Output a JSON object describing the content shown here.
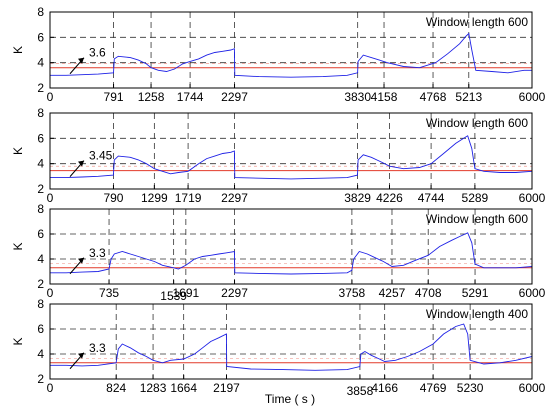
{
  "colors": {
    "signal": "#1f22e6",
    "threshold": "#e23a2a",
    "grid": "#333333"
  },
  "chart_data": [
    {
      "type": "line",
      "label_text": "Window length 600",
      "threshold_value": 3.6,
      "threshold_label": "3.6",
      "xlim": [
        0,
        6000
      ],
      "ylim": [
        2,
        8
      ],
      "yticks": [
        2,
        4,
        6,
        8
      ],
      "xticks": [
        0,
        791,
        1258,
        1744,
        2297,
        3830,
        4158,
        4768,
        5213,
        6000
      ],
      "vlines": [
        791,
        1258,
        1744,
        2297,
        3830,
        4158,
        4768,
        5213
      ],
      "ylabel": "K",
      "series": [
        {
          "x": [
            0,
            200,
            400,
            600,
            790,
            800,
            850,
            1000,
            1100,
            1200,
            1258,
            1350,
            1450,
            1550,
            1650,
            1744,
            1850,
            1950,
            2050,
            2150,
            2250,
            2296,
            2300,
            2600,
            3000,
            3400,
            3700,
            3829,
            3835,
            3900,
            4000,
            4100,
            4200,
            4400,
            4600,
            4800,
            4950,
            5100,
            5180,
            5213,
            5250,
            5300,
            5500,
            5700,
            5900,
            6000
          ],
          "y": [
            3.0,
            3.0,
            3.05,
            3.1,
            3.2,
            4.3,
            4.5,
            4.4,
            4.2,
            3.9,
            3.6,
            3.4,
            3.3,
            3.5,
            3.9,
            4.1,
            4.3,
            4.6,
            4.8,
            4.9,
            5.0,
            5.1,
            3.0,
            2.9,
            2.85,
            2.9,
            3.0,
            3.2,
            4.1,
            4.6,
            4.4,
            4.2,
            4.0,
            3.7,
            3.6,
            4.0,
            4.7,
            5.5,
            6.1,
            6.3,
            5.0,
            3.4,
            3.3,
            3.2,
            3.4,
            3.4
          ]
        }
      ]
    },
    {
      "type": "line",
      "label_text": "Window length 600",
      "threshold_value": 3.45,
      "threshold_label": "3.45",
      "xlim": [
        0,
        6000
      ],
      "ylim": [
        2,
        8
      ],
      "yticks": [
        2,
        4,
        6,
        8
      ],
      "xticks": [
        0,
        790,
        1299,
        1719,
        2297,
        3829,
        4226,
        4744,
        5289,
        6000
      ],
      "vlines": [
        790,
        1299,
        1719,
        2297,
        3829,
        4226,
        4744,
        5289
      ],
      "ylabel": "K",
      "series": [
        {
          "x": [
            0,
            200,
            400,
            600,
            789,
            800,
            850,
            1000,
            1100,
            1200,
            1299,
            1400,
            1500,
            1600,
            1719,
            1850,
            1950,
            2050,
            2150,
            2250,
            2296,
            2300,
            2600,
            3000,
            3400,
            3700,
            3828,
            3835,
            3900,
            4000,
            4100,
            4226,
            4400,
            4600,
            4744,
            4900,
            5050,
            5150,
            5200,
            5250,
            5289,
            5400,
            5600,
            5800,
            6000
          ],
          "y": [
            2.9,
            2.9,
            2.95,
            3.0,
            3.1,
            4.3,
            4.6,
            4.5,
            4.3,
            4.0,
            3.6,
            3.4,
            3.2,
            3.3,
            3.4,
            4.0,
            4.4,
            4.6,
            4.8,
            4.9,
            5.0,
            2.9,
            2.85,
            2.8,
            2.85,
            2.9,
            3.1,
            4.3,
            4.7,
            4.5,
            4.2,
            3.8,
            3.6,
            3.7,
            4.0,
            4.8,
            5.6,
            6.0,
            6.2,
            5.2,
            3.6,
            3.4,
            3.3,
            3.3,
            3.4
          ]
        }
      ]
    },
    {
      "type": "line",
      "label_text": "Window length 600",
      "threshold_value": 3.3,
      "threshold_label": "3.3",
      "xlim": [
        0,
        6000
      ],
      "ylim": [
        2,
        8
      ],
      "yticks": [
        2,
        4,
        6,
        8
      ],
      "xticks": [
        0,
        735,
        1539,
        1691,
        2297,
        3758,
        4257,
        4708,
        5291,
        6000
      ],
      "vlines": [
        735,
        1539,
        1691,
        2297,
        3758,
        4257,
        4708,
        5291
      ],
      "ylabel": "K",
      "series": [
        {
          "x": [
            0,
            200,
            400,
            600,
            734,
            760,
            800,
            900,
            1000,
            1100,
            1200,
            1300,
            1400,
            1539,
            1600,
            1691,
            1800,
            1900,
            2000,
            2100,
            2200,
            2296,
            2300,
            2600,
            3000,
            3400,
            3700,
            3757,
            3780,
            3850,
            3950,
            4050,
            4150,
            4257,
            4400,
            4550,
            4708,
            4850,
            5000,
            5100,
            5200,
            5250,
            5291,
            5400,
            5600,
            5800,
            6000
          ],
          "y": [
            2.9,
            2.9,
            2.95,
            3.0,
            3.2,
            4.0,
            4.4,
            4.6,
            4.4,
            4.2,
            4.0,
            3.8,
            3.5,
            3.3,
            3.2,
            3.5,
            4.0,
            4.2,
            4.3,
            4.4,
            4.5,
            4.6,
            2.9,
            2.85,
            2.8,
            2.85,
            2.9,
            3.1,
            4.0,
            4.6,
            4.4,
            4.1,
            3.8,
            3.4,
            3.5,
            3.9,
            4.3,
            5.0,
            5.5,
            5.8,
            6.1,
            5.3,
            3.6,
            3.3,
            3.3,
            3.3,
            3.4
          ]
        }
      ]
    },
    {
      "type": "line",
      "label_text": "Window length 400",
      "threshold_value": 3.3,
      "threshold_label": "3.3",
      "xlim": [
        0,
        6000
      ],
      "ylim": [
        2,
        8
      ],
      "yticks": [
        2,
        4,
        6,
        8
      ],
      "xticks": [
        0,
        824,
        1283,
        1664,
        2197,
        3858,
        4166,
        4769,
        5230,
        6000
      ],
      "vlines": [
        824,
        1283,
        1664,
        2197,
        3858,
        4166,
        4769,
        5230
      ],
      "ylabel": "K",
      "series": [
        {
          "x": [
            0,
            200,
            400,
            600,
            823,
            850,
            900,
            1000,
            1100,
            1200,
            1283,
            1400,
            1500,
            1664,
            1800,
            1900,
            2000,
            2100,
            2196,
            2200,
            2500,
            2900,
            3300,
            3700,
            3857,
            3870,
            3920,
            4000,
            4100,
            4166,
            4300,
            4450,
            4600,
            4769,
            4900,
            5050,
            5150,
            5200,
            5230,
            5400,
            5600,
            5800,
            6000
          ],
          "y": [
            3.1,
            3.1,
            3.05,
            3.1,
            3.3,
            4.4,
            4.8,
            4.5,
            4.1,
            3.8,
            3.5,
            3.3,
            3.5,
            3.6,
            4.0,
            4.5,
            5.0,
            5.3,
            5.6,
            3.0,
            2.8,
            2.75,
            2.7,
            2.75,
            3.0,
            4.0,
            4.2,
            3.9,
            3.6,
            3.4,
            3.5,
            3.8,
            4.2,
            4.8,
            5.6,
            6.2,
            6.4,
            5.6,
            3.5,
            3.2,
            3.3,
            3.5,
            3.8
          ]
        }
      ]
    }
  ],
  "xlabel": "Time ( s )"
}
